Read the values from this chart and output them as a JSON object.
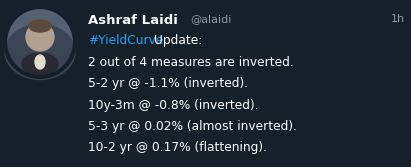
{
  "background_color": "#15202b",
  "name": "Ashraf Laidi",
  "handle": "@alaidi",
  "time": "1h",
  "name_color": "#ffffff",
  "handle_color": "#8899aa",
  "time_color": "#8899aa",
  "hashtag_color": "#1da1f2",
  "text_color": "#ffffff",
  "line1_hashtag": "#YieldCurve",
  "line1_rest": " Update:",
  "line2": "2 out of 4 measures are inverted.",
  "line3": "5-2 yr @ -1.1% (inverted).",
  "line4": "10y-3m @ -0.8% (inverted).",
  "line5": "5-3 yr @ 0.02% (almost inverted).",
  "line6": "10-2 yr @ 0.17% (flattening).",
  "font_size_name": 9.5,
  "font_size_handle": 8.0,
  "font_size_body": 8.8,
  "avatar_face_color": "#b0a090",
  "avatar_hair_color": "#5a4a3a",
  "avatar_suit_color": "#2a2a35",
  "avatar_bg_color": "#556070",
  "avatar_border_color": "#1a2535"
}
